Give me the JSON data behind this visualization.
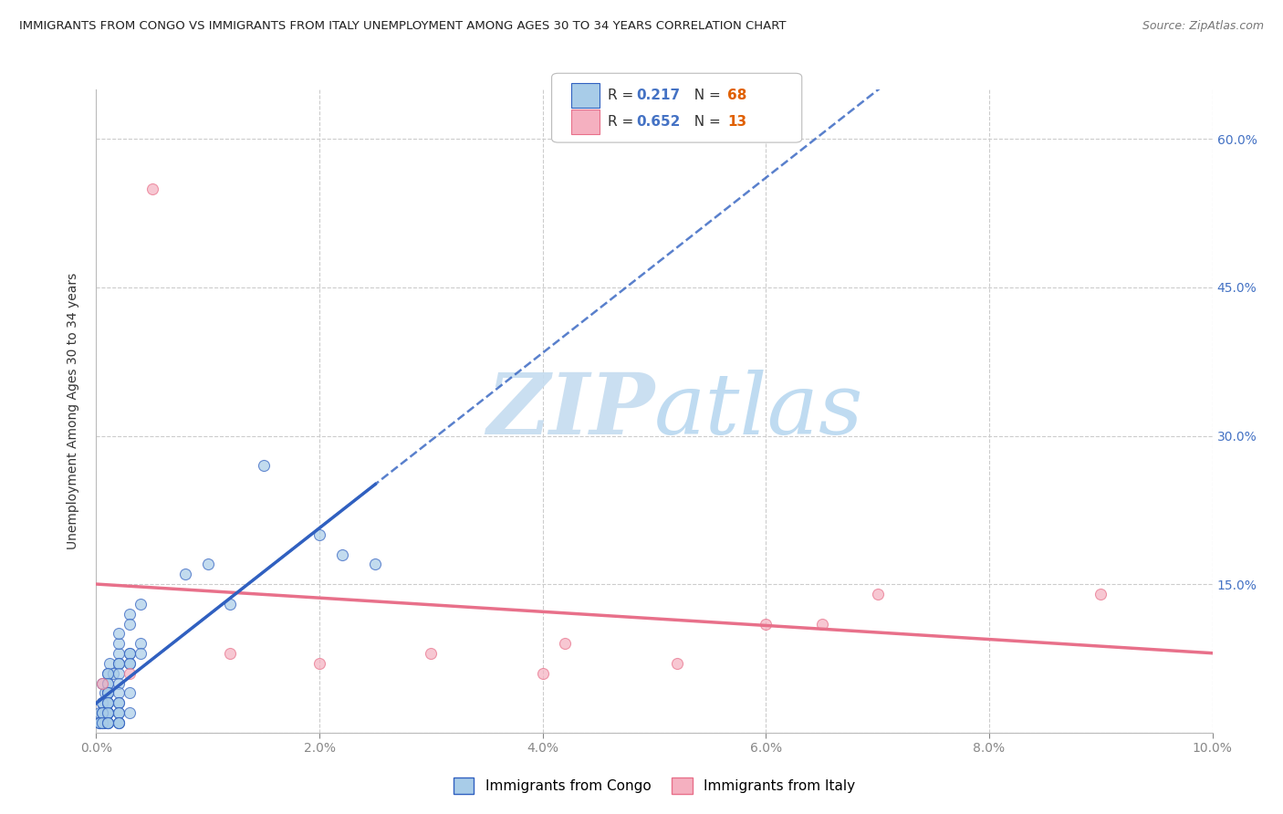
{
  "title": "IMMIGRANTS FROM CONGO VS IMMIGRANTS FROM ITALY UNEMPLOYMENT AMONG AGES 30 TO 34 YEARS CORRELATION CHART",
  "source": "Source: ZipAtlas.com",
  "ylabel": "Unemployment Among Ages 30 to 34 years",
  "r_congo": 0.217,
  "n_congo": 68,
  "r_italy": 0.652,
  "n_italy": 13,
  "xlim": [
    0.0,
    0.1
  ],
  "ylim": [
    0.0,
    0.65
  ],
  "xticks": [
    0.0,
    0.02,
    0.04,
    0.06,
    0.08,
    0.1
  ],
  "yticks": [
    0.0,
    0.15,
    0.3,
    0.45,
    0.6
  ],
  "xtick_labels": [
    "0.0%",
    "2.0%",
    "4.0%",
    "6.0%",
    "8.0%",
    "10.0%"
  ],
  "ytick_labels": [
    "",
    "15.0%",
    "30.0%",
    "45.0%",
    "60.0%"
  ],
  "color_congo": "#A8CCE8",
  "color_italy": "#F5B0C0",
  "trendline_congo_color": "#3060C0",
  "trendline_italy_color": "#E8708A",
  "background_color": "#FFFFFF",
  "grid_color": "#CCCCCC",
  "congo_x": [
    0.0005,
    0.0008,
    0.001,
    0.001,
    0.0012,
    0.0015,
    0.002,
    0.002,
    0.002,
    0.002,
    0.003,
    0.003,
    0.003,
    0.003,
    0.004,
    0.004,
    0.004,
    0.0005,
    0.001,
    0.001,
    0.001,
    0.002,
    0.002,
    0.003,
    0.003,
    0.0005,
    0.001,
    0.001,
    0.001,
    0.002,
    0.002,
    0.002,
    0.003,
    0.0003,
    0.0005,
    0.001,
    0.001,
    0.001,
    0.002,
    0.002,
    0.0003,
    0.0005,
    0.0007,
    0.001,
    0.001,
    0.002,
    0.0003,
    0.0005,
    0.001,
    0.001,
    0.002,
    0.0005,
    0.001,
    0.001,
    0.002,
    0.003,
    0.0003,
    0.0005,
    0.001,
    0.001,
    0.002,
    0.008,
    0.01,
    0.012,
    0.015,
    0.02,
    0.022,
    0.025
  ],
  "congo_y": [
    0.05,
    0.04,
    0.06,
    0.05,
    0.07,
    0.06,
    0.08,
    0.07,
    0.09,
    0.1,
    0.12,
    0.11,
    0.08,
    0.07,
    0.13,
    0.09,
    0.08,
    0.03,
    0.06,
    0.05,
    0.04,
    0.07,
    0.06,
    0.08,
    0.07,
    0.02,
    0.04,
    0.03,
    0.02,
    0.05,
    0.04,
    0.03,
    0.04,
    0.02,
    0.03,
    0.04,
    0.03,
    0.02,
    0.03,
    0.02,
    0.01,
    0.02,
    0.01,
    0.02,
    0.01,
    0.02,
    0.01,
    0.01,
    0.02,
    0.01,
    0.01,
    0.02,
    0.03,
    0.02,
    0.01,
    0.02,
    0.01,
    0.01,
    0.01,
    0.01,
    0.01,
    0.16,
    0.17,
    0.13,
    0.27,
    0.2,
    0.18,
    0.17
  ],
  "italy_x": [
    0.0005,
    0.003,
    0.005,
    0.012,
    0.02,
    0.03,
    0.04,
    0.042,
    0.052,
    0.06,
    0.065,
    0.07,
    0.09
  ],
  "italy_y": [
    0.05,
    0.06,
    0.55,
    0.08,
    0.07,
    0.08,
    0.06,
    0.09,
    0.07,
    0.11,
    0.11,
    0.14,
    0.14
  ],
  "congo_trendline_x0": 0.0,
  "congo_trendline_x1": 0.1,
  "italy_trendline_x0": 0.0,
  "italy_trendline_x1": 0.1
}
